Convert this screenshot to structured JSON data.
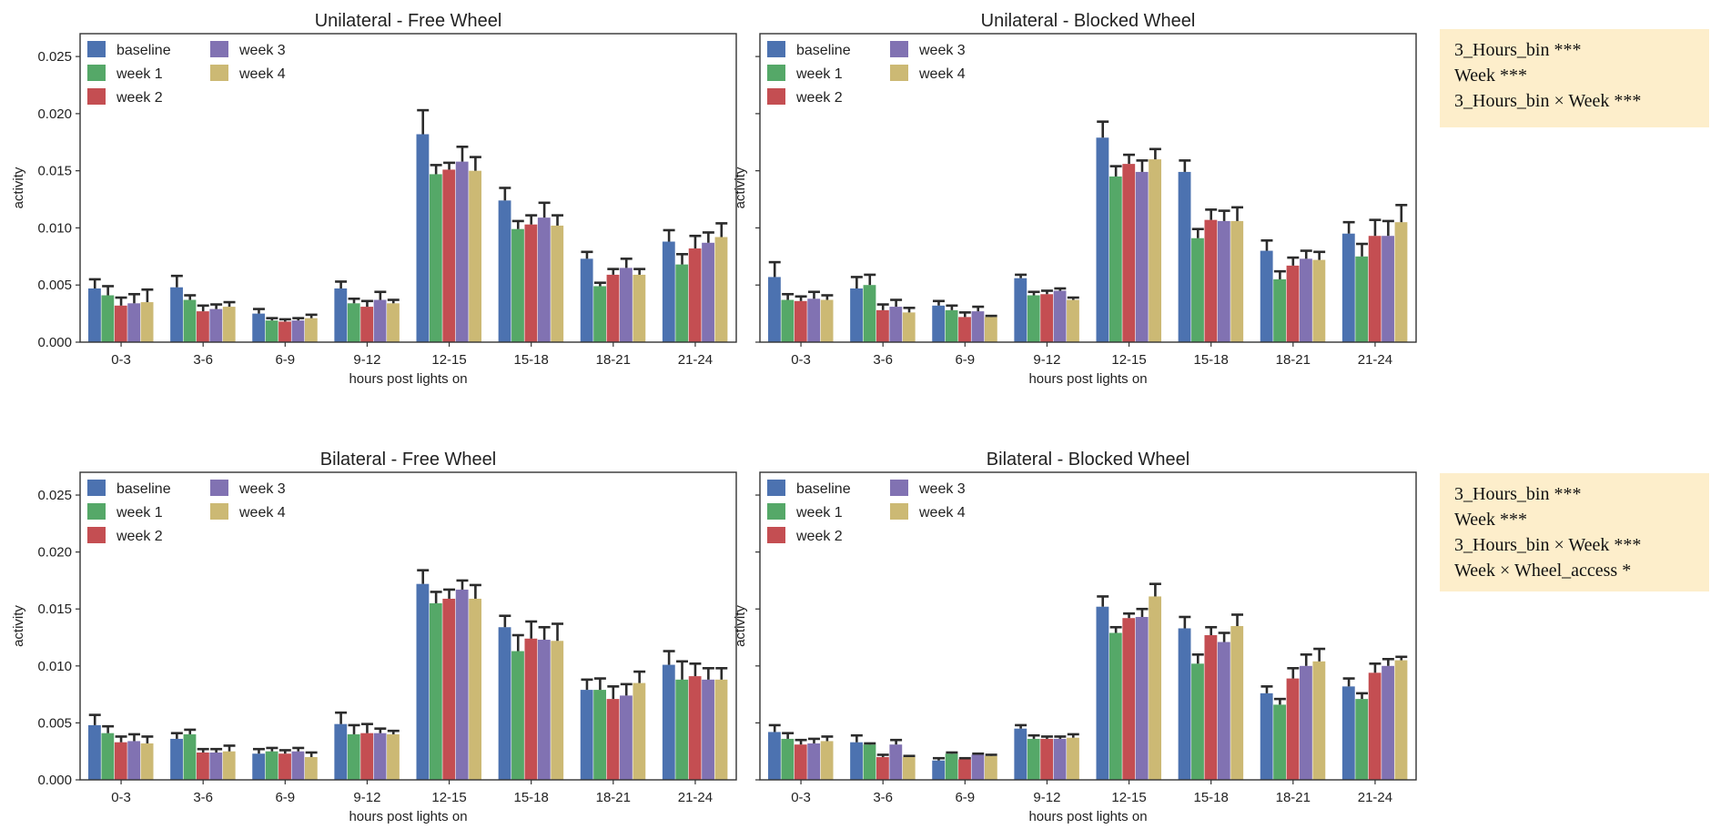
{
  "colors": {
    "baseline": "#4c72b0",
    "week 1": "#55a868",
    "week 2": "#c44e52",
    "week 3": "#8172b2",
    "week 4": "#ccb974",
    "errorbar": "#2b2b2b",
    "stats_bg": "#fdeecb"
  },
  "chart_data": [
    {
      "type": "bar",
      "title": "Unilateral - Free Wheel",
      "xlabel": "hours post lights on",
      "ylabel": "activity",
      "ylim": [
        0,
        0.027
      ],
      "yticks": [
        "0.000",
        "0.005",
        "0.010",
        "0.015",
        "0.020",
        "0.025"
      ],
      "ytick_values": [
        0,
        0.005,
        0.01,
        0.015,
        0.02,
        0.025
      ],
      "categories": [
        "0-3",
        "3-6",
        "6-9",
        "9-12",
        "12-15",
        "15-18",
        "18-21",
        "21-24"
      ],
      "legend": [
        "baseline",
        "week 1",
        "week 2",
        "week 3",
        "week 4"
      ],
      "legend_position": "top-left",
      "series": [
        {
          "name": "baseline",
          "values": [
            0.0047,
            0.0048,
            0.0025,
            0.0047,
            0.0182,
            0.0124,
            0.0073,
            0.0088
          ],
          "errors": [
            0.0008,
            0.001,
            0.0004,
            0.0006,
            0.0021,
            0.0011,
            0.0006,
            0.001
          ]
        },
        {
          "name": "week 1",
          "values": [
            0.0041,
            0.0037,
            0.0019,
            0.0034,
            0.0147,
            0.0099,
            0.0049,
            0.0068
          ],
          "errors": [
            0.0008,
            0.0004,
            0.0002,
            0.0004,
            0.0008,
            0.0007,
            0.0003,
            0.0009
          ]
        },
        {
          "name": "week 2",
          "values": [
            0.0032,
            0.0027,
            0.0018,
            0.0031,
            0.0151,
            0.0103,
            0.0059,
            0.0082
          ],
          "errors": [
            0.0007,
            0.0005,
            0.0002,
            0.0005,
            0.0006,
            0.0008,
            0.0005,
            0.0011
          ]
        },
        {
          "name": "week 3",
          "values": [
            0.0034,
            0.0029,
            0.0019,
            0.0037,
            0.0158,
            0.0109,
            0.0065,
            0.0087
          ],
          "errors": [
            0.0008,
            0.0004,
            0.0002,
            0.0007,
            0.0013,
            0.0013,
            0.0008,
            0.0009
          ]
        },
        {
          "name": "week 4",
          "values": [
            0.0035,
            0.0031,
            0.0021,
            0.0034,
            0.015,
            0.0102,
            0.0059,
            0.0092
          ],
          "errors": [
            0.0011,
            0.0004,
            0.0003,
            0.0003,
            0.0012,
            0.0009,
            0.0005,
            0.0012
          ]
        }
      ]
    },
    {
      "type": "bar",
      "title": "Unilateral - Blocked Wheel",
      "xlabel": "hours post lights on",
      "ylabel": "activity",
      "ylim": [
        0,
        0.027
      ],
      "categories": [
        "0-3",
        "3-6",
        "6-9",
        "9-12",
        "12-15",
        "15-18",
        "18-21",
        "21-24"
      ],
      "legend": [
        "baseline",
        "week 1",
        "week 2",
        "week 3",
        "week 4"
      ],
      "legend_position": "top-left",
      "series": [
        {
          "name": "baseline",
          "values": [
            0.0057,
            0.0047,
            0.0032,
            0.0056,
            0.0179,
            0.0149,
            0.008,
            0.0095
          ],
          "errors": [
            0.0013,
            0.001,
            0.0004,
            0.0003,
            0.0014,
            0.001,
            0.0009,
            0.001
          ]
        },
        {
          "name": "week 1",
          "values": [
            0.0037,
            0.005,
            0.0028,
            0.0041,
            0.0145,
            0.0091,
            0.0055,
            0.0075
          ],
          "errors": [
            0.0005,
            0.0009,
            0.0004,
            0.0003,
            0.0009,
            0.0008,
            0.0007,
            0.0011
          ]
        },
        {
          "name": "week 2",
          "values": [
            0.0036,
            0.0028,
            0.0022,
            0.0042,
            0.0156,
            0.0107,
            0.0067,
            0.0093
          ],
          "errors": [
            0.0004,
            0.0005,
            0.0004,
            0.0003,
            0.0008,
            0.0009,
            0.0007,
            0.0014
          ]
        },
        {
          "name": "week 3",
          "values": [
            0.0038,
            0.0031,
            0.0027,
            0.0045,
            0.0149,
            0.0106,
            0.0073,
            0.0093
          ],
          "errors": [
            0.0006,
            0.0006,
            0.0004,
            0.0002,
            0.001,
            0.0009,
            0.0007,
            0.0013
          ]
        },
        {
          "name": "week 4",
          "values": [
            0.0037,
            0.0026,
            0.0022,
            0.0037,
            0.016,
            0.0106,
            0.0072,
            0.0105
          ],
          "errors": [
            0.0004,
            0.0004,
            0.0001,
            0.0002,
            0.0009,
            0.0012,
            0.0007,
            0.0015
          ]
        }
      ]
    },
    {
      "type": "bar",
      "title": "Bilateral - Free Wheel",
      "xlabel": "hours post lights on",
      "ylabel": "activity",
      "ylim": [
        0,
        0.027
      ],
      "categories": [
        "0-3",
        "3-6",
        "6-9",
        "9-12",
        "12-15",
        "15-18",
        "18-21",
        "21-24"
      ],
      "legend": [
        "baseline",
        "week 1",
        "week 2",
        "week 3",
        "week 4"
      ],
      "legend_position": "top-left",
      "series": [
        {
          "name": "baseline",
          "values": [
            0.0048,
            0.0036,
            0.0023,
            0.0049,
            0.0172,
            0.0134,
            0.0079,
            0.0101
          ],
          "errors": [
            0.0009,
            0.0005,
            0.0004,
            0.001,
            0.0012,
            0.001,
            0.0009,
            0.0012
          ]
        },
        {
          "name": "week 1",
          "values": [
            0.0041,
            0.004,
            0.0025,
            0.004,
            0.0155,
            0.0113,
            0.0079,
            0.0088
          ],
          "errors": [
            0.0006,
            0.0004,
            0.0003,
            0.0008,
            0.001,
            0.0014,
            0.001,
            0.0016
          ]
        },
        {
          "name": "week 2",
          "values": [
            0.0033,
            0.0024,
            0.0023,
            0.0041,
            0.0159,
            0.0124,
            0.0071,
            0.0091
          ],
          "errors": [
            0.0005,
            0.0003,
            0.0003,
            0.0008,
            0.0008,
            0.0015,
            0.0011,
            0.0011
          ]
        },
        {
          "name": "week 3",
          "values": [
            0.0034,
            0.0024,
            0.0025,
            0.0041,
            0.0167,
            0.0123,
            0.0074,
            0.0088
          ],
          "errors": [
            0.0006,
            0.0003,
            0.0003,
            0.0004,
            0.0008,
            0.0011,
            0.001,
            0.001
          ]
        },
        {
          "name": "week 4",
          "values": [
            0.0032,
            0.0025,
            0.002,
            0.004,
            0.0159,
            0.0122,
            0.0085,
            0.0088
          ],
          "errors": [
            0.0006,
            0.0005,
            0.0004,
            0.0003,
            0.0012,
            0.0015,
            0.001,
            0.001
          ]
        }
      ]
    },
    {
      "type": "bar",
      "title": "Bilateral - Blocked Wheel",
      "xlabel": "hours post lights on",
      "ylabel": "activity",
      "ylim": [
        0,
        0.027
      ],
      "categories": [
        "0-3",
        "3-6",
        "6-9",
        "9-12",
        "12-15",
        "15-18",
        "18-21",
        "21-24"
      ],
      "legend": [
        "baseline",
        "week 1",
        "week 2",
        "week 3",
        "week 4"
      ],
      "legend_position": "top-left",
      "series": [
        {
          "name": "baseline",
          "values": [
            0.0042,
            0.0033,
            0.0017,
            0.0045,
            0.0152,
            0.0133,
            0.0076,
            0.0082
          ],
          "errors": [
            0.0006,
            0.0006,
            0.0002,
            0.0003,
            0.0009,
            0.001,
            0.0006,
            0.0007
          ]
        },
        {
          "name": "week 1",
          "values": [
            0.0036,
            0.0031,
            0.0023,
            0.0036,
            0.0129,
            0.0102,
            0.0066,
            0.0071
          ],
          "errors": [
            0.0005,
            0.0001,
            0.0001,
            0.0003,
            0.0005,
            0.0008,
            0.0005,
            0.0005
          ]
        },
        {
          "name": "week 2",
          "values": [
            0.0031,
            0.002,
            0.0018,
            0.0036,
            0.0142,
            0.0127,
            0.0089,
            0.0094
          ],
          "errors": [
            0.0004,
            0.0002,
            0.0001,
            0.0002,
            0.0004,
            0.0007,
            0.0009,
            0.0008
          ]
        },
        {
          "name": "week 3",
          "values": [
            0.0032,
            0.0031,
            0.0022,
            0.0036,
            0.0143,
            0.0121,
            0.01,
            0.01
          ],
          "errors": [
            0.0004,
            0.0004,
            0.0001,
            0.0002,
            0.0007,
            0.0008,
            0.001,
            0.0006
          ]
        },
        {
          "name": "week 4",
          "values": [
            0.0034,
            0.002,
            0.0021,
            0.0037,
            0.0161,
            0.0135,
            0.0104,
            0.0105
          ],
          "errors": [
            0.0004,
            0.0001,
            0.0001,
            0.0003,
            0.0011,
            0.001,
            0.0011,
            0.0003
          ]
        }
      ]
    }
  ],
  "stats_top": {
    "line1": "3_Hours_bin ***",
    "line2": "Week ***",
    "line3": "3_Hours_bin × Week ***"
  },
  "stats_bottom": {
    "line1": "3_Hours_bin ***",
    "line2": "Week ***",
    "line3": "3_Hours_bin × Week ***",
    "line4": "Week × Wheel_access *"
  }
}
